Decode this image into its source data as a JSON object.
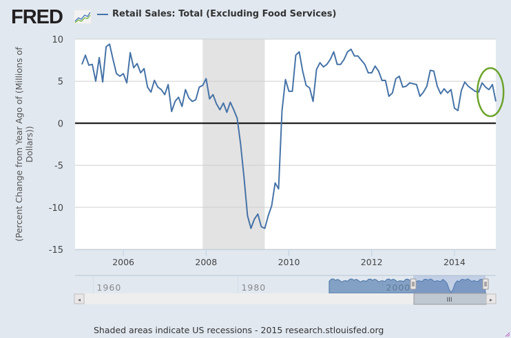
{
  "header": {
    "logo_text": "FRED",
    "logo_icon": "chart-line-icon"
  },
  "footer": {
    "note": "Shaded areas indicate US recessions - 2015 research.stlouisfed.org"
  },
  "annotation": {
    "type": "ellipse",
    "color": "#6ba32a",
    "highlights": "last months of 2014"
  },
  "navigator": {
    "tick_labels": [
      "1960",
      "1980",
      "2000"
    ],
    "scroll_thumb_glyph": "III",
    "left_arrow": "◂",
    "right_arrow": "▸"
  },
  "colors": {
    "series": "#4572a7",
    "recession": "#e3e3e3",
    "background": "#e1e8f0",
    "zero_line": "#000000"
  },
  "chart_data": {
    "type": "line",
    "title": "",
    "legend": [
      "Retail Sales: Total (Excluding Food Services)"
    ],
    "legend_position": "top",
    "xlabel": "",
    "ylabel": "(Percent Change from Year Ago of (Millions of Dollars))",
    "ylim": [
      -15,
      10
    ],
    "yticks": [
      10,
      5,
      0,
      -5,
      -10,
      -15
    ],
    "xlim": [
      "2004-11",
      "2015-01"
    ],
    "xticks": [
      "2006",
      "2008",
      "2010",
      "2012",
      "2014"
    ],
    "grid": true,
    "recessions": [
      {
        "start": "2007-12",
        "end": "2009-06"
      }
    ],
    "series": [
      {
        "name": "Retail Sales: Total (Excluding Food Services)",
        "start": "2005-01",
        "frequency": "monthly",
        "values": [
          7.0,
          8.1,
          6.9,
          7.0,
          5.0,
          7.8,
          4.9,
          9.1,
          9.4,
          7.6,
          5.9,
          5.6,
          5.9,
          4.8,
          8.4,
          6.6,
          7.1,
          6.0,
          6.5,
          4.3,
          3.7,
          5.1,
          4.3,
          4.0,
          3.4,
          4.6,
          1.4,
          2.6,
          3.1,
          2.0,
          4.0,
          3.0,
          2.6,
          2.8,
          4.3,
          4.5,
          5.3,
          2.9,
          3.4,
          2.3,
          1.6,
          2.4,
          1.3,
          2.5,
          1.6,
          0.6,
          -2.5,
          -6.5,
          -11.0,
          -12.5,
          -11.4,
          -10.8,
          -12.3,
          -12.5,
          -11.0,
          -9.8,
          -7.1,
          -7.8,
          1.5,
          5.2,
          3.8,
          3.8,
          8.1,
          8.5,
          6.2,
          4.5,
          4.2,
          2.6,
          6.4,
          7.2,
          6.7,
          7.0,
          7.6,
          8.5,
          7.0,
          7.0,
          7.6,
          8.5,
          8.8,
          8.0,
          8.0,
          7.5,
          7.0,
          6.0,
          6.0,
          6.8,
          6.2,
          5.1,
          5.1,
          3.2,
          3.6,
          5.3,
          5.6,
          4.3,
          4.4,
          4.8,
          4.7,
          4.6,
          3.2,
          3.7,
          4.4,
          6.3,
          6.2,
          4.4,
          3.5,
          4.1,
          3.6,
          4.0,
          1.8,
          1.5,
          3.9,
          4.9,
          4.4,
          4.1,
          3.8,
          3.7,
          4.8,
          4.3,
          4.0,
          4.6,
          2.6
        ]
      }
    ]
  }
}
